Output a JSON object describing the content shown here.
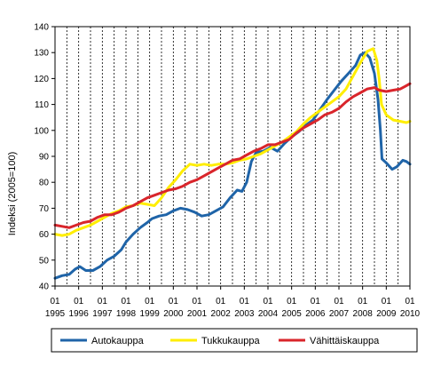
{
  "chart_data": {
    "type": "line",
    "title": "",
    "xlabel": "",
    "ylabel": "Indeksi (2005=100)",
    "ylim": [
      40,
      140
    ],
    "yticks": [
      40,
      50,
      60,
      70,
      80,
      90,
      100,
      110,
      120,
      130,
      140
    ],
    "xlim": [
      1995,
      2010
    ],
    "xticks": [
      {
        "value": 1995,
        "month": "01",
        "year": "1995"
      },
      {
        "value": 1996,
        "month": "01",
        "year": "1996"
      },
      {
        "value": 1997,
        "month": "01",
        "year": "1997"
      },
      {
        "value": 1998,
        "month": "01",
        "year": "1998"
      },
      {
        "value": 1999,
        "month": "01",
        "year": "1999"
      },
      {
        "value": 2000,
        "month": "01",
        "year": "2000"
      },
      {
        "value": 2001,
        "month": "01",
        "year": "2001"
      },
      {
        "value": 2002,
        "month": "01",
        "year": "2002"
      },
      {
        "value": 2003,
        "month": "01",
        "year": "2003"
      },
      {
        "value": 2004,
        "month": "01",
        "year": "2004"
      },
      {
        "value": 2005,
        "month": "01",
        "year": "2005"
      },
      {
        "value": 2006,
        "month": "01",
        "year": "2006"
      },
      {
        "value": 2007,
        "month": "01",
        "year": "2007"
      },
      {
        "value": 2008,
        "month": "01",
        "year": "2008"
      },
      {
        "value": 2009,
        "month": "01",
        "year": "2009"
      },
      {
        "value": 2010,
        "month": "01",
        "year": "2010"
      }
    ],
    "grid": "vertical dashed",
    "legend": "bottom",
    "series": [
      {
        "name": "Autokauppa",
        "color": "#1f64a8",
        "points": [
          [
            1995.0,
            43
          ],
          [
            1995.3,
            44
          ],
          [
            1995.6,
            44.5
          ],
          [
            1995.85,
            46.5
          ],
          [
            1996.05,
            47.5
          ],
          [
            1996.3,
            46
          ],
          [
            1996.6,
            46
          ],
          [
            1996.9,
            47.5
          ],
          [
            1997.2,
            50
          ],
          [
            1997.5,
            51.5
          ],
          [
            1997.8,
            54
          ],
          [
            1998.0,
            57
          ],
          [
            1998.3,
            60
          ],
          [
            1998.6,
            62.5
          ],
          [
            1998.9,
            64.5
          ],
          [
            1999.1,
            66
          ],
          [
            1999.4,
            67
          ],
          [
            1999.7,
            67.5
          ],
          [
            2000.0,
            69
          ],
          [
            2000.3,
            70
          ],
          [
            2000.6,
            69.5
          ],
          [
            2000.9,
            68.5
          ],
          [
            2001.2,
            67
          ],
          [
            2001.5,
            67.5
          ],
          [
            2001.8,
            69
          ],
          [
            2002.1,
            70.5
          ],
          [
            2002.4,
            74
          ],
          [
            2002.7,
            77
          ],
          [
            2002.9,
            76.5
          ],
          [
            2003.1,
            80
          ],
          [
            2003.3,
            88
          ],
          [
            2003.5,
            91.5
          ],
          [
            2003.8,
            92
          ],
          [
            2004.1,
            93.5
          ],
          [
            2004.4,
            92
          ],
          [
            2004.7,
            95
          ],
          [
            2005.0,
            97.5
          ],
          [
            2005.3,
            99.5
          ],
          [
            2005.6,
            102
          ],
          [
            2005.9,
            104
          ],
          [
            2006.2,
            108
          ],
          [
            2006.5,
            112
          ],
          [
            2006.8,
            115.5
          ],
          [
            2007.1,
            119
          ],
          [
            2007.4,
            122
          ],
          [
            2007.7,
            125
          ],
          [
            2007.9,
            129
          ],
          [
            2008.1,
            130
          ],
          [
            2008.3,
            128
          ],
          [
            2008.5,
            122
          ],
          [
            2008.65,
            112
          ],
          [
            2008.75,
            100
          ],
          [
            2008.82,
            89
          ],
          [
            2009.0,
            87.5
          ],
          [
            2009.25,
            85
          ],
          [
            2009.45,
            86
          ],
          [
            2009.7,
            88.5
          ],
          [
            2009.85,
            88
          ],
          [
            2010.0,
            87
          ]
        ]
      },
      {
        "name": "Tukkukauppa",
        "color": "#ffee00",
        "points": [
          [
            1995.0,
            60
          ],
          [
            1995.3,
            59.5
          ],
          [
            1995.6,
            60
          ],
          [
            1995.9,
            61.5
          ],
          [
            1996.2,
            62.5
          ],
          [
            1996.5,
            63.5
          ],
          [
            1996.8,
            65
          ],
          [
            1997.1,
            66.5
          ],
          [
            1997.4,
            68
          ],
          [
            1997.7,
            69
          ],
          [
            1998.0,
            70.5
          ],
          [
            1998.3,
            71
          ],
          [
            1998.6,
            72
          ],
          [
            1998.9,
            71.5
          ],
          [
            1999.2,
            71
          ],
          [
            1999.5,
            74
          ],
          [
            1999.8,
            78
          ],
          [
            2000.1,
            81
          ],
          [
            2000.4,
            84.5
          ],
          [
            2000.7,
            87
          ],
          [
            2001.0,
            86.5
          ],
          [
            2001.3,
            87
          ],
          [
            2001.6,
            86.5
          ],
          [
            2001.9,
            87
          ],
          [
            2002.2,
            87
          ],
          [
            2002.5,
            87.5
          ],
          [
            2002.8,
            88.5
          ],
          [
            2003.1,
            89
          ],
          [
            2003.4,
            90
          ],
          [
            2003.7,
            91
          ],
          [
            2004.0,
            92.5
          ],
          [
            2004.3,
            94
          ],
          [
            2004.6,
            95.5
          ],
          [
            2004.9,
            97.5
          ],
          [
            2005.2,
            99.5
          ],
          [
            2005.5,
            102.5
          ],
          [
            2005.8,
            105
          ],
          [
            2006.1,
            107
          ],
          [
            2006.4,
            109
          ],
          [
            2006.7,
            111
          ],
          [
            2007.0,
            113
          ],
          [
            2007.3,
            116
          ],
          [
            2007.6,
            121
          ],
          [
            2007.9,
            126
          ],
          [
            2008.2,
            130.5
          ],
          [
            2008.45,
            131.5
          ],
          [
            2008.6,
            127
          ],
          [
            2008.7,
            120
          ],
          [
            2008.8,
            110
          ],
          [
            2009.0,
            106
          ],
          [
            2009.3,
            104
          ],
          [
            2009.6,
            103.5
          ],
          [
            2009.85,
            103
          ],
          [
            2010.0,
            103.5
          ]
        ]
      },
      {
        "name": "Vähittäiskauppa",
        "color": "#d9252b",
        "points": [
          [
            1995.0,
            63.5
          ],
          [
            1995.3,
            63
          ],
          [
            1995.6,
            62.5
          ],
          [
            1995.9,
            63.5
          ],
          [
            1996.2,
            64.5
          ],
          [
            1996.5,
            65
          ],
          [
            1996.8,
            66.5
          ],
          [
            1997.1,
            67.5
          ],
          [
            1997.4,
            67.5
          ],
          [
            1997.7,
            68.5
          ],
          [
            1998.0,
            70
          ],
          [
            1998.3,
            71
          ],
          [
            1998.6,
            72.5
          ],
          [
            1998.9,
            74
          ],
          [
            1999.2,
            75
          ],
          [
            1999.5,
            76
          ],
          [
            1999.8,
            77
          ],
          [
            2000.1,
            77.5
          ],
          [
            2000.4,
            78.5
          ],
          [
            2000.7,
            80
          ],
          [
            2001.0,
            81
          ],
          [
            2001.3,
            82.5
          ],
          [
            2001.6,
            84
          ],
          [
            2001.9,
            85.5
          ],
          [
            2002.2,
            87
          ],
          [
            2002.5,
            88.5
          ],
          [
            2002.8,
            89
          ],
          [
            2003.1,
            90.5
          ],
          [
            2003.4,
            92
          ],
          [
            2003.7,
            93
          ],
          [
            2004.0,
            94.5
          ],
          [
            2004.3,
            94.5
          ],
          [
            2004.6,
            95.5
          ],
          [
            2004.9,
            96.5
          ],
          [
            2005.2,
            99
          ],
          [
            2005.5,
            101
          ],
          [
            2005.8,
            102.5
          ],
          [
            2006.1,
            104
          ],
          [
            2006.4,
            106
          ],
          [
            2006.7,
            107
          ],
          [
            2007.0,
            108.5
          ],
          [
            2007.3,
            111
          ],
          [
            2007.6,
            113
          ],
          [
            2007.9,
            114.5
          ],
          [
            2008.2,
            116
          ],
          [
            2008.5,
            116.5
          ],
          [
            2008.7,
            115.5
          ],
          [
            2009.0,
            115
          ],
          [
            2009.3,
            115.5
          ],
          [
            2009.6,
            116
          ],
          [
            2009.8,
            117
          ],
          [
            2010.0,
            118
          ]
        ]
      }
    ]
  }
}
